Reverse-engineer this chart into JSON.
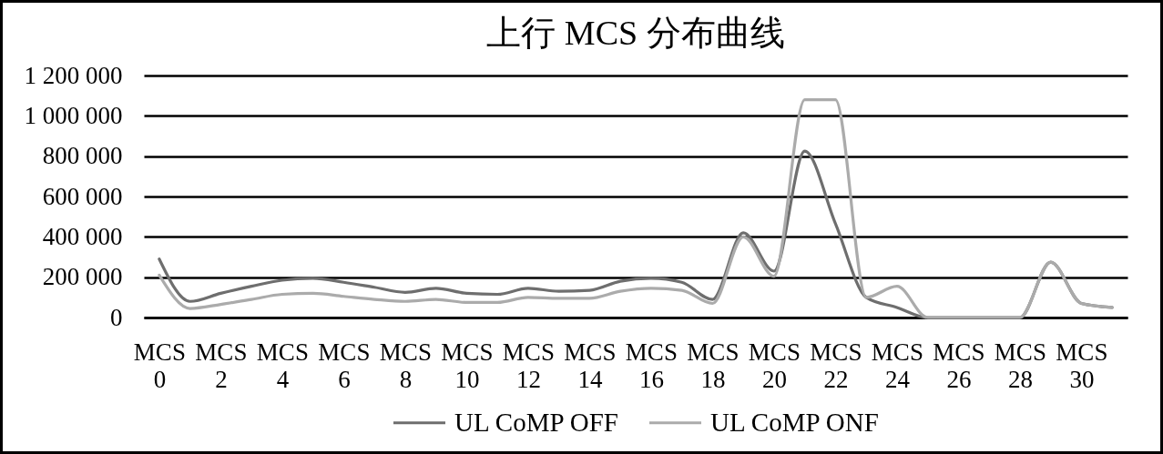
{
  "chart_data": {
    "type": "line",
    "title": "上行 MCS 分布曲线",
    "categories": [
      "MCS 0",
      null,
      "MCS 2",
      null,
      "MCS 4",
      null,
      "MCS 6",
      null,
      "MCS 8",
      null,
      "MCS 10",
      null,
      "MCS 12",
      null,
      "MCS 14",
      null,
      "MCS 16",
      null,
      "MCS 18",
      null,
      "MCS 20",
      null,
      "MCS 22",
      null,
      "MCS 24",
      null,
      "MCS 26",
      null,
      "MCS 28",
      null,
      "MCS 30",
      null
    ],
    "series": [
      {
        "name": "UL CoMP OFF",
        "color": "#6e6e6e",
        "values": [
          290000,
          80000,
          120000,
          155000,
          185000,
          195000,
          175000,
          150000,
          125000,
          145000,
          120000,
          115000,
          145000,
          130000,
          135000,
          180000,
          195000,
          175000,
          90000,
          420000,
          230000,
          825000,
          465000,
          100000,
          50000,
          0,
          0,
          0,
          0,
          275000,
          70000,
          50000
        ]
      },
      {
        "name": "UL CoMP ONF",
        "color": "#ababab",
        "values": [
          210000,
          45000,
          65000,
          90000,
          115000,
          120000,
          105000,
          90000,
          80000,
          90000,
          75000,
          75000,
          100000,
          95000,
          95000,
          130000,
          145000,
          135000,
          70000,
          400000,
          205000,
          1080000,
          1080000,
          100000,
          155000,
          0,
          0,
          0,
          0,
          275000,
          70000,
          50000
        ]
      }
    ],
    "ylim": [
      0,
      1200000
    ],
    "yticks": [
      0,
      {
        "value": 200000,
        "label": "200 000"
      },
      {
        "value": 400000,
        "label": "400 000"
      },
      {
        "value": 600000,
        "label": "600 000"
      },
      {
        "value": 800000,
        "label": "800 000"
      },
      {
        "value": 1000000,
        "label": "1 000 000"
      },
      {
        "value": 1200000,
        "label": "1 200 000"
      }
    ],
    "grid": "y",
    "legend": "bottom"
  }
}
